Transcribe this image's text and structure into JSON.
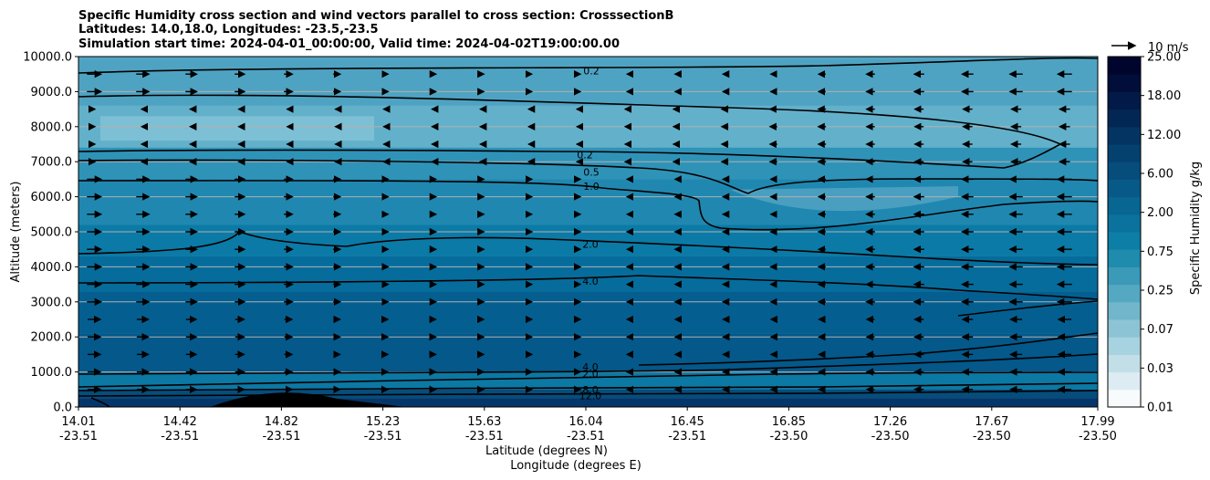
{
  "chart_data": {
    "type": "contour",
    "title_lines": [
      "Specific Humidity cross section and wind vectors parallel to cross section: CrosssectionB",
      "Latitudes: 14.0,18.0, Longitudes: -23.5,-23.5",
      "Simulation start time: 2024-04-01_00:00:00, Valid time: 2024-04-02T19:00:00.00"
    ],
    "ylabel": "Altitude (meters)",
    "xlabel_lat": "Latitude (degrees N)",
    "xlabel_lon": "Longitude (degrees E)",
    "ylim": [
      0,
      10000
    ],
    "yticks": [
      "0.0",
      "1000.0",
      "2000.0",
      "3000.0",
      "4000.0",
      "5000.0",
      "6000.0",
      "7000.0",
      "8000.0",
      "9000.0",
      "10000.0"
    ],
    "xticks_lat": [
      "14.01",
      "14.42",
      "14.82",
      "15.23",
      "15.63",
      "16.04",
      "16.45",
      "16.85",
      "17.26",
      "17.67",
      "17.99"
    ],
    "xticks_lon": [
      "-23.51",
      "-23.51",
      "-23.51",
      "-23.51",
      "-23.51",
      "-23.51",
      "-23.51",
      "-23.50",
      "-23.50",
      "-23.50",
      "-23.50"
    ],
    "grid": "horizontal",
    "colorbar": {
      "label": "Specific Humidity g/kg",
      "tick_labels": [
        "0.01",
        "0.03",
        "0.07",
        "0.25",
        "0.75",
        "2.00",
        "6.00",
        "12.00",
        "18.00",
        "25.00"
      ],
      "colors": [
        "#f7fbfc",
        "#dcecf2",
        "#c2dfe8",
        "#a7d2df",
        "#8dc4d5",
        "#71b6cb",
        "#55a8c1",
        "#3a9ab7",
        "#1f8bad",
        "#0d7ea6",
        "#0a729d",
        "#086693",
        "#075a88",
        "#064d7c",
        "#05416f",
        "#043462",
        "#032755",
        "#021a47",
        "#010e3a",
        "#00052e"
      ]
    },
    "wind_reference": "10 m/s",
    "contour_labels": [
      {
        "text": "0.2",
        "altitude": 9600
      },
      {
        "text": "0.2",
        "altitude": 7200
      },
      {
        "text": "0.5",
        "altitude": 6700
      },
      {
        "text": "1.0",
        "altitude": 6300
      },
      {
        "text": "2.0",
        "altitude": 4650
      },
      {
        "text": "4.0",
        "altitude": 3600
      },
      {
        "text": "4.0",
        "altitude": 1150
      },
      {
        "text": "2.0",
        "altitude": 950
      },
      {
        "text": "8.0",
        "altitude": 500
      },
      {
        "text": "12.0",
        "altitude": 330
      }
    ]
  }
}
